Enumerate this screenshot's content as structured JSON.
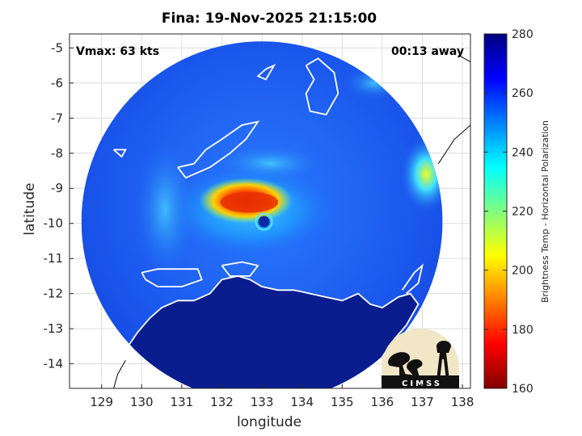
{
  "chart_data": {
    "type": "heatmap",
    "title": "Fina: 19-Nov-2025 21:15:00",
    "xlabel": "longitude",
    "ylabel": "latitude",
    "xlim": [
      128.2,
      138.2
    ],
    "ylim": [
      -14.7,
      -4.6
    ],
    "xticks": [
      129,
      130,
      131,
      132,
      133,
      134,
      135,
      136,
      137,
      138
    ],
    "yticks": [
      -5,
      -6,
      -7,
      -8,
      -9,
      -10,
      -11,
      -12,
      -13,
      -14
    ],
    "grid": true,
    "annotations": {
      "left": "Vmax: 63 kts",
      "right": "00:13 away"
    },
    "storm_center": {
      "lon": 133.0,
      "lat": -9.95
    },
    "swath": {
      "center_lon": 133.0,
      "center_lat": -9.95,
      "radius_deg": 4.8
    },
    "colorbar": {
      "label": "Brightness Temp - Horizontal Polarization",
      "min": 160,
      "max": 280,
      "ticks": [
        280,
        260,
        240,
        220,
        200,
        180,
        160
      ],
      "colormap": "jet"
    },
    "features": [
      {
        "name": "eyewall-warm-band",
        "lon": 132.6,
        "lat": -9.35,
        "value": 185
      },
      {
        "name": "eye",
        "lon": 133.05,
        "lat": -9.95,
        "value": 262
      },
      {
        "name": "outer-rainband-east",
        "lon": 137.1,
        "lat": -8.6,
        "value": 222
      },
      {
        "name": "land-mass-south",
        "lon": 133.5,
        "lat": -13.8,
        "value": 275
      }
    ]
  },
  "logo": {
    "text": "CIMSS"
  },
  "colors": {
    "ocean_base": "#1f5ff0",
    "land": "#0a1d8f",
    "coast": "#ffffff",
    "grid": "#d9d9d9"
  }
}
